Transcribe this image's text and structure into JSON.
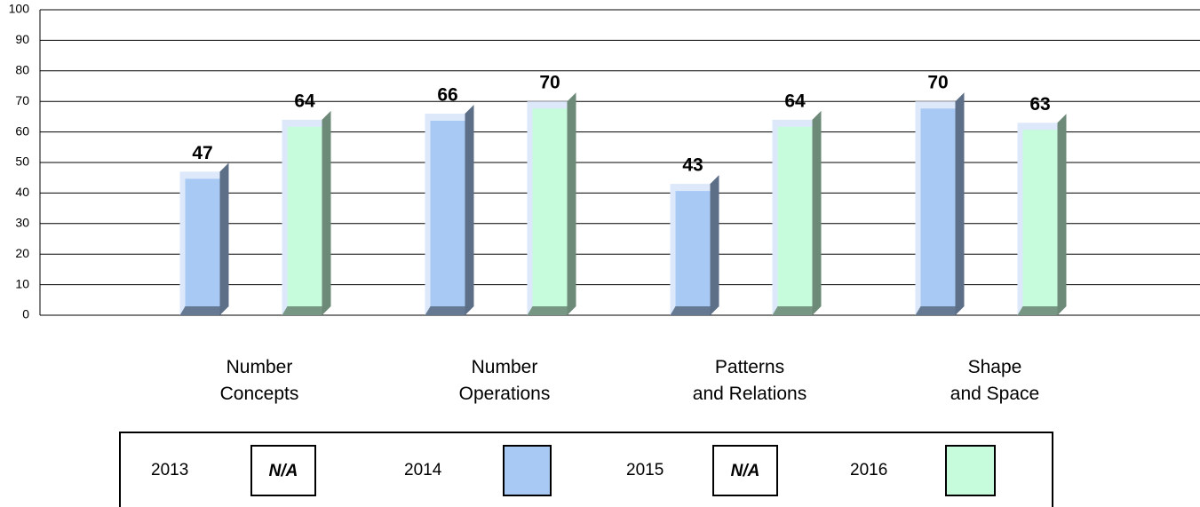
{
  "chart_data": {
    "type": "bar",
    "categories": [
      "Number\nConcepts",
      "Number\nOperations",
      "Patterns\nand Relations",
      "Shape\nand Space"
    ],
    "series": [
      {
        "name": "2013",
        "legend_label": "N/A",
        "values": [
          null,
          null,
          null,
          null
        ]
      },
      {
        "name": "2014",
        "color": "#a9c9f5",
        "values": [
          47,
          66,
          43,
          70
        ]
      },
      {
        "name": "2015",
        "legend_label": "N/A",
        "values": [
          null,
          null,
          null,
          null
        ]
      },
      {
        "name": "2016",
        "color": "#c6fbdc",
        "values": [
          64,
          70,
          64,
          63
        ]
      }
    ],
    "ylim": [
      0,
      100
    ],
    "yticks": [
      0,
      10,
      20,
      30,
      40,
      50,
      60,
      70,
      80,
      90,
      100
    ],
    "grid": true
  }
}
